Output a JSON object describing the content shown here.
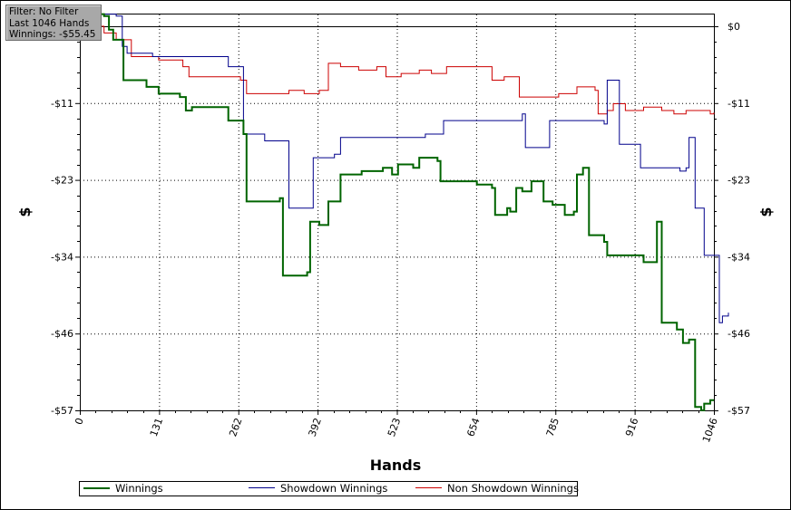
{
  "filter_box": {
    "filter": "Filter: No Filter",
    "hands": "Last 1046 Hands",
    "winnings": "Winnings: -$55.45"
  },
  "chart_data": {
    "type": "line",
    "xlabel": "Hands",
    "ylabel": "$",
    "ylabel_right": "$",
    "xlim": [
      0,
      1046
    ],
    "ylim": [
      -57,
      0
    ],
    "x_ticks": [
      "0",
      "131",
      "262",
      "392",
      "523",
      "654",
      "785",
      "916",
      "1046"
    ],
    "y_ticks": [
      "$0",
      "-$11",
      "-$23",
      "-$34",
      "-$46",
      "-$57"
    ],
    "grid": true,
    "legend_position": "bottom",
    "series": [
      {
        "name": "Winnings",
        "color": "#006400",
        "points": [
          [
            0,
            1.8
          ],
          [
            40,
            1.5
          ],
          [
            48,
            -0.5
          ],
          [
            55,
            -2
          ],
          [
            65,
            -2
          ],
          [
            72,
            -8
          ],
          [
            110,
            -9
          ],
          [
            130,
            -10
          ],
          [
            165,
            -10.5
          ],
          [
            175,
            -12.5
          ],
          [
            185,
            -12
          ],
          [
            240,
            -12
          ],
          [
            245,
            -14
          ],
          [
            270,
            -16
          ],
          [
            275,
            -26
          ],
          [
            330,
            -25.5
          ],
          [
            335,
            -37
          ],
          [
            375,
            -36.5
          ],
          [
            380,
            -29
          ],
          [
            395,
            -29.5
          ],
          [
            410,
            -26
          ],
          [
            425,
            -26
          ],
          [
            430,
            -22
          ],
          [
            460,
            -22
          ],
          [
            465,
            -21.5
          ],
          [
            500,
            -21
          ],
          [
            515,
            -22
          ],
          [
            525,
            -20.5
          ],
          [
            550,
            -21
          ],
          [
            560,
            -19.5
          ],
          [
            590,
            -20
          ],
          [
            595,
            -23
          ],
          [
            650,
            -23
          ],
          [
            655,
            -23.5
          ],
          [
            680,
            -24
          ],
          [
            685,
            -28
          ],
          [
            705,
            -27
          ],
          [
            710,
            -27.5
          ],
          [
            720,
            -24
          ],
          [
            730,
            -24.5
          ],
          [
            745,
            -23
          ],
          [
            760,
            -23
          ],
          [
            765,
            -26
          ],
          [
            780,
            -26.5
          ],
          [
            800,
            -28
          ],
          [
            815,
            -27.5
          ],
          [
            820,
            -22
          ],
          [
            830,
            -21
          ],
          [
            840,
            -31
          ],
          [
            865,
            -32
          ],
          [
            870,
            -34
          ],
          [
            885,
            -34
          ],
          [
            915,
            -34
          ],
          [
            925,
            -34
          ],
          [
            930,
            -35
          ],
          [
            945,
            -35
          ],
          [
            952,
            -29
          ],
          [
            960,
            -44
          ],
          [
            975,
            -44
          ],
          [
            985,
            -45
          ],
          [
            995,
            -47
          ],
          [
            1005,
            -46.5
          ],
          [
            1015,
            -56.5
          ],
          [
            1025,
            -57
          ],
          [
            1030,
            -56
          ],
          [
            1040,
            -55.5
          ],
          [
            1046,
            -55.5
          ]
        ]
      },
      {
        "name": "Showdown Winnings",
        "color": "#00008b",
        "points": [
          [
            0,
            1.8
          ],
          [
            25,
            1.8
          ],
          [
            60,
            1.5
          ],
          [
            70,
            -3
          ],
          [
            78,
            -4
          ],
          [
            120,
            -4.5
          ],
          [
            200,
            -4.5
          ],
          [
            235,
            -4.5
          ],
          [
            245,
            -6
          ],
          [
            265,
            -6
          ],
          [
            270,
            -16
          ],
          [
            300,
            -16
          ],
          [
            305,
            -17
          ],
          [
            340,
            -17
          ],
          [
            345,
            -27
          ],
          [
            380,
            -27
          ],
          [
            385,
            -19.5
          ],
          [
            420,
            -19
          ],
          [
            430,
            -16.5
          ],
          [
            500,
            -16.5
          ],
          [
            540,
            -16.5
          ],
          [
            570,
            -16
          ],
          [
            590,
            -16
          ],
          [
            600,
            -14
          ],
          [
            720,
            -14
          ],
          [
            730,
            -13
          ],
          [
            735,
            -18
          ],
          [
            770,
            -18
          ],
          [
            775,
            -14
          ],
          [
            865,
            -14.5
          ],
          [
            870,
            -8
          ],
          [
            885,
            -8
          ],
          [
            890,
            -17.5
          ],
          [
            915,
            -17.5
          ],
          [
            925,
            -21
          ],
          [
            945,
            -21
          ],
          [
            990,
            -21.5
          ],
          [
            1000,
            -21
          ],
          [
            1005,
            -16.5
          ],
          [
            1015,
            -27
          ],
          [
            1030,
            -34
          ],
          [
            1040,
            -34
          ],
          [
            1046,
            -34
          ],
          [
            1055,
            -44
          ],
          [
            1060,
            -43
          ],
          [
            1070,
            -42.5
          ]
        ]
      },
      {
        "name": "Non Showdown Winnings",
        "color": "#cc0000",
        "points": [
          [
            0,
            1.8
          ],
          [
            30,
            0
          ],
          [
            40,
            -1
          ],
          [
            60,
            -2
          ],
          [
            85,
            -4.5
          ],
          [
            130,
            -5
          ],
          [
            170,
            -6
          ],
          [
            180,
            -7.5
          ],
          [
            250,
            -7.5
          ],
          [
            265,
            -8
          ],
          [
            275,
            -10
          ],
          [
            300,
            -10
          ],
          [
            345,
            -9.5
          ],
          [
            370,
            -10
          ],
          [
            395,
            -9.5
          ],
          [
            410,
            -5.5
          ],
          [
            430,
            -6
          ],
          [
            460,
            -6.5
          ],
          [
            490,
            -6
          ],
          [
            505,
            -7.5
          ],
          [
            530,
            -7
          ],
          [
            560,
            -6.5
          ],
          [
            580,
            -7
          ],
          [
            605,
            -6
          ],
          [
            615,
            -6
          ],
          [
            665,
            -6
          ],
          [
            680,
            -8
          ],
          [
            700,
            -7.5
          ],
          [
            725,
            -10.5
          ],
          [
            760,
            -10.5
          ],
          [
            790,
            -10
          ],
          [
            820,
            -9
          ],
          [
            850,
            -9.5
          ],
          [
            855,
            -13
          ],
          [
            870,
            -12.5
          ],
          [
            880,
            -11.5
          ],
          [
            900,
            -12.5
          ],
          [
            930,
            -12
          ],
          [
            960,
            -12.5
          ],
          [
            980,
            -13
          ],
          [
            1000,
            -12.5
          ],
          [
            1020,
            -12.5
          ],
          [
            1040,
            -13
          ],
          [
            1046,
            -12.8
          ]
        ]
      }
    ]
  }
}
